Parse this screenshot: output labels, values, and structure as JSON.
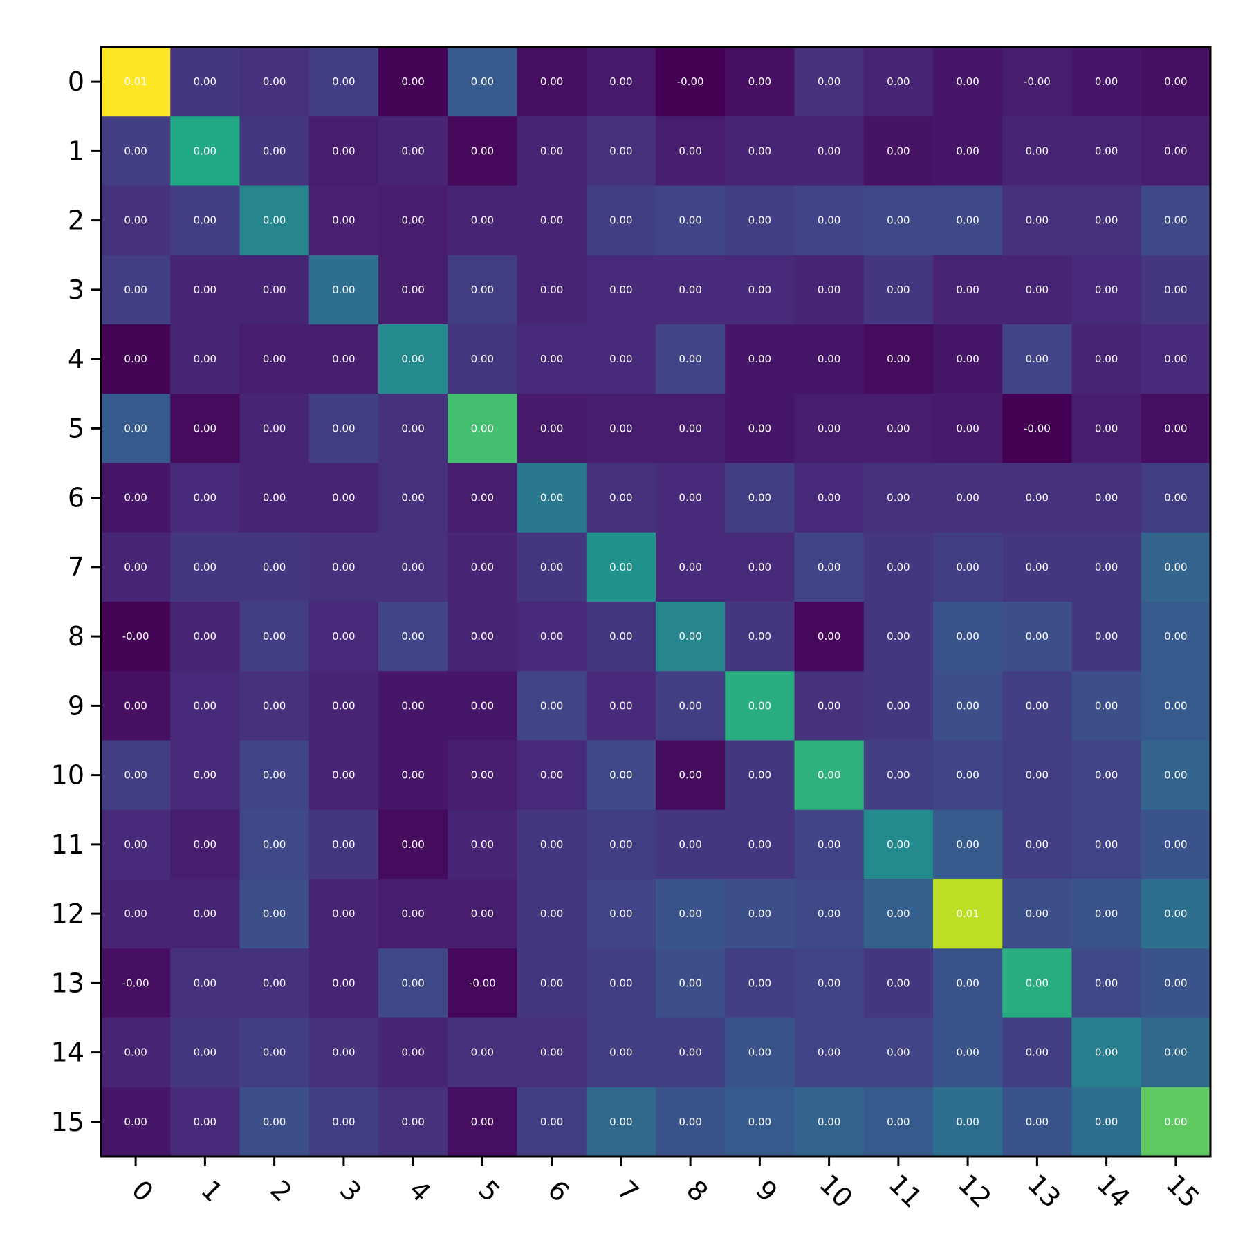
{
  "chart_data": {
    "type": "heatmap",
    "colormap": "viridis",
    "title": "",
    "xlabel": "",
    "ylabel": "",
    "x_ticks": [
      "0",
      "1",
      "2",
      "3",
      "4",
      "5",
      "6",
      "7",
      "8",
      "9",
      "10",
      "11",
      "12",
      "13",
      "14",
      "15"
    ],
    "y_ticks": [
      "0",
      "1",
      "2",
      "3",
      "4",
      "5",
      "6",
      "7",
      "8",
      "9",
      "10",
      "11",
      "12",
      "13",
      "14",
      "15"
    ],
    "x_tick_rotation": 45,
    "colorbar": false,
    "grid": false,
    "cell_labels": [
      [
        "0.01",
        "0.00",
        "0.00",
        "0.00",
        "0.00",
        "0.00",
        "0.00",
        "0.00",
        "-0.00",
        "0.00",
        "0.00",
        "0.00",
        "0.00",
        "-0.00",
        "0.00",
        "0.00"
      ],
      [
        "0.00",
        "0.00",
        "0.00",
        "0.00",
        "0.00",
        "0.00",
        "0.00",
        "0.00",
        "0.00",
        "0.00",
        "0.00",
        "0.00",
        "0.00",
        "0.00",
        "0.00",
        "0.00"
      ],
      [
        "0.00",
        "0.00",
        "0.00",
        "0.00",
        "0.00",
        "0.00",
        "0.00",
        "0.00",
        "0.00",
        "0.00",
        "0.00",
        "0.00",
        "0.00",
        "0.00",
        "0.00",
        "0.00"
      ],
      [
        "0.00",
        "0.00",
        "0.00",
        "0.00",
        "0.00",
        "0.00",
        "0.00",
        "0.00",
        "0.00",
        "0.00",
        "0.00",
        "0.00",
        "0.00",
        "0.00",
        "0.00",
        "0.00"
      ],
      [
        "0.00",
        "0.00",
        "0.00",
        "0.00",
        "0.00",
        "0.00",
        "0.00",
        "0.00",
        "0.00",
        "0.00",
        "0.00",
        "0.00",
        "0.00",
        "0.00",
        "0.00",
        "0.00"
      ],
      [
        "0.00",
        "0.00",
        "0.00",
        "0.00",
        "0.00",
        "0.00",
        "0.00",
        "0.00",
        "0.00",
        "0.00",
        "0.00",
        "0.00",
        "0.00",
        "-0.00",
        "0.00",
        "0.00"
      ],
      [
        "0.00",
        "0.00",
        "0.00",
        "0.00",
        "0.00",
        "0.00",
        "0.00",
        "0.00",
        "0.00",
        "0.00",
        "0.00",
        "0.00",
        "0.00",
        "0.00",
        "0.00",
        "0.00"
      ],
      [
        "0.00",
        "0.00",
        "0.00",
        "0.00",
        "0.00",
        "0.00",
        "0.00",
        "0.00",
        "0.00",
        "0.00",
        "0.00",
        "0.00",
        "0.00",
        "0.00",
        "0.00",
        "0.00"
      ],
      [
        "-0.00",
        "0.00",
        "0.00",
        "0.00",
        "0.00",
        "0.00",
        "0.00",
        "0.00",
        "0.00",
        "0.00",
        "0.00",
        "0.00",
        "0.00",
        "0.00",
        "0.00",
        "0.00"
      ],
      [
        "0.00",
        "0.00",
        "0.00",
        "0.00",
        "0.00",
        "0.00",
        "0.00",
        "0.00",
        "0.00",
        "0.00",
        "0.00",
        "0.00",
        "0.00",
        "0.00",
        "0.00",
        "0.00"
      ],
      [
        "0.00",
        "0.00",
        "0.00",
        "0.00",
        "0.00",
        "0.00",
        "0.00",
        "0.00",
        "0.00",
        "0.00",
        "0.00",
        "0.00",
        "0.00",
        "0.00",
        "0.00",
        "0.00"
      ],
      [
        "0.00",
        "0.00",
        "0.00",
        "0.00",
        "0.00",
        "0.00",
        "0.00",
        "0.00",
        "0.00",
        "0.00",
        "0.00",
        "0.00",
        "0.00",
        "0.00",
        "0.00",
        "0.00"
      ],
      [
        "0.00",
        "0.00",
        "0.00",
        "0.00",
        "0.00",
        "0.00",
        "0.00",
        "0.00",
        "0.00",
        "0.00",
        "0.00",
        "0.00",
        "0.01",
        "0.00",
        "0.00",
        "0.00"
      ],
      [
        "-0.00",
        "0.00",
        "0.00",
        "0.00",
        "0.00",
        "-0.00",
        "0.00",
        "0.00",
        "0.00",
        "0.00",
        "0.00",
        "0.00",
        "0.00",
        "0.00",
        "0.00",
        "0.00"
      ],
      [
        "0.00",
        "0.00",
        "0.00",
        "0.00",
        "0.00",
        "0.00",
        "0.00",
        "0.00",
        "0.00",
        "0.00",
        "0.00",
        "0.00",
        "0.00",
        "0.00",
        "0.00",
        "0.00"
      ],
      [
        "0.00",
        "0.00",
        "0.00",
        "0.00",
        "0.00",
        "0.00",
        "0.00",
        "0.00",
        "0.00",
        "0.00",
        "0.00",
        "0.00",
        "0.00",
        "0.00",
        "0.00",
        "0.00"
      ]
    ],
    "color_intensity": [
      [
        1.0,
        0.16,
        0.14,
        0.18,
        0.01,
        0.28,
        0.04,
        0.07,
        0.0,
        0.04,
        0.14,
        0.1,
        0.06,
        0.08,
        0.06,
        0.04
      ],
      [
        0.18,
        0.6,
        0.16,
        0.08,
        0.1,
        0.02,
        0.1,
        0.14,
        0.08,
        0.1,
        0.1,
        0.05,
        0.06,
        0.1,
        0.1,
        0.08
      ],
      [
        0.14,
        0.18,
        0.45,
        0.09,
        0.08,
        0.1,
        0.1,
        0.18,
        0.2,
        0.18,
        0.2,
        0.22,
        0.22,
        0.14,
        0.14,
        0.22
      ],
      [
        0.18,
        0.1,
        0.1,
        0.36,
        0.08,
        0.18,
        0.1,
        0.12,
        0.12,
        0.12,
        0.1,
        0.16,
        0.1,
        0.1,
        0.12,
        0.16
      ],
      [
        0.01,
        0.1,
        0.08,
        0.08,
        0.47,
        0.16,
        0.12,
        0.12,
        0.2,
        0.06,
        0.06,
        0.03,
        0.06,
        0.2,
        0.1,
        0.12
      ],
      [
        0.28,
        0.03,
        0.1,
        0.18,
        0.14,
        0.7,
        0.07,
        0.08,
        0.08,
        0.06,
        0.08,
        0.08,
        0.07,
        0.0,
        0.08,
        0.04
      ],
      [
        0.06,
        0.12,
        0.1,
        0.1,
        0.14,
        0.08,
        0.4,
        0.14,
        0.12,
        0.18,
        0.12,
        0.14,
        0.14,
        0.14,
        0.14,
        0.18
      ],
      [
        0.1,
        0.16,
        0.16,
        0.14,
        0.14,
        0.1,
        0.16,
        0.5,
        0.12,
        0.12,
        0.2,
        0.16,
        0.18,
        0.16,
        0.16,
        0.32
      ],
      [
        0.01,
        0.1,
        0.18,
        0.12,
        0.2,
        0.1,
        0.12,
        0.16,
        0.45,
        0.16,
        0.02,
        0.16,
        0.26,
        0.24,
        0.16,
        0.28
      ],
      [
        0.04,
        0.12,
        0.14,
        0.1,
        0.06,
        0.06,
        0.2,
        0.12,
        0.18,
        0.62,
        0.14,
        0.16,
        0.24,
        0.18,
        0.24,
        0.28
      ],
      [
        0.18,
        0.12,
        0.2,
        0.1,
        0.06,
        0.08,
        0.12,
        0.22,
        0.03,
        0.16,
        0.64,
        0.18,
        0.2,
        0.18,
        0.2,
        0.32
      ],
      [
        0.12,
        0.08,
        0.22,
        0.16,
        0.03,
        0.1,
        0.16,
        0.18,
        0.16,
        0.16,
        0.2,
        0.47,
        0.28,
        0.18,
        0.2,
        0.26
      ],
      [
        0.1,
        0.1,
        0.24,
        0.1,
        0.08,
        0.08,
        0.16,
        0.2,
        0.26,
        0.24,
        0.22,
        0.3,
        0.9,
        0.24,
        0.26,
        0.36
      ],
      [
        0.04,
        0.14,
        0.14,
        0.1,
        0.22,
        0.02,
        0.16,
        0.18,
        0.24,
        0.18,
        0.2,
        0.16,
        0.26,
        0.62,
        0.22,
        0.26
      ],
      [
        0.1,
        0.16,
        0.18,
        0.14,
        0.1,
        0.14,
        0.14,
        0.18,
        0.18,
        0.26,
        0.2,
        0.2,
        0.26,
        0.18,
        0.42,
        0.34
      ],
      [
        0.06,
        0.12,
        0.24,
        0.18,
        0.14,
        0.04,
        0.18,
        0.34,
        0.26,
        0.28,
        0.32,
        0.28,
        0.36,
        0.26,
        0.36,
        0.75
      ]
    ]
  }
}
